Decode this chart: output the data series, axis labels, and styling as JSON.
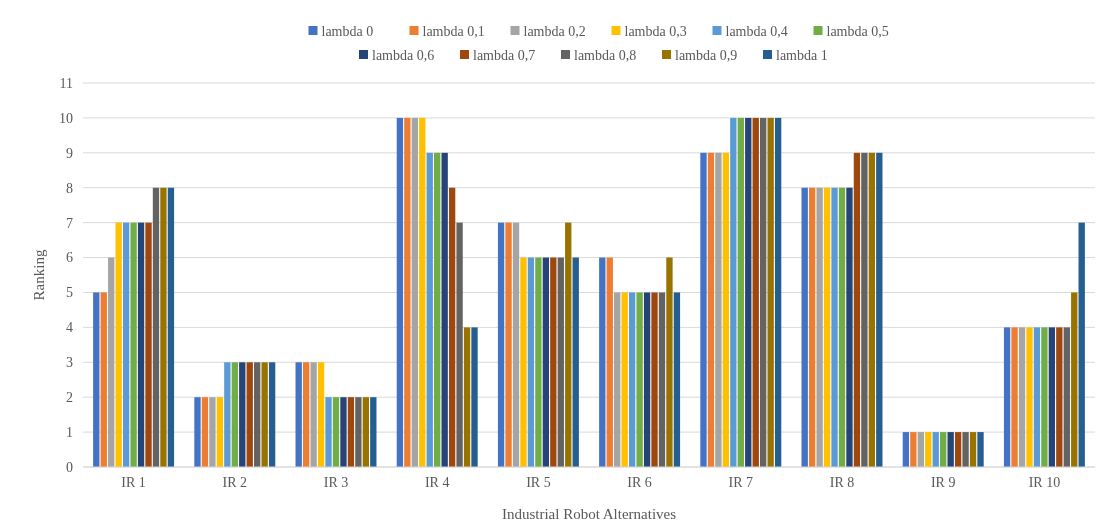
{
  "chart_data": {
    "type": "bar",
    "xlabel": "Industrial Robot Alternatives",
    "ylabel": "Ranking",
    "categories": [
      "IR 1",
      "IR 2",
      "IR 3",
      "IR 4",
      "IR 5",
      "IR 6",
      "IR 7",
      "IR 8",
      "IR 9",
      "IR 10"
    ],
    "series": [
      {
        "name": "lambda 0",
        "color": "#4472c4",
        "values": [
          5,
          2,
          3,
          10,
          7,
          6,
          9,
          8,
          1,
          4
        ]
      },
      {
        "name": "lambda 0,1",
        "color": "#ed7d31",
        "values": [
          5,
          2,
          3,
          10,
          7,
          6,
          9,
          8,
          1,
          4
        ]
      },
      {
        "name": "lambda 0,2",
        "color": "#a5a5a5",
        "values": [
          6,
          2,
          3,
          10,
          7,
          5,
          9,
          8,
          1,
          4
        ]
      },
      {
        "name": "lambda 0,3",
        "color": "#ffc000",
        "values": [
          7,
          2,
          3,
          10,
          6,
          5,
          9,
          8,
          1,
          4
        ]
      },
      {
        "name": "lambda 0,4",
        "color": "#5b9bd5",
        "values": [
          7,
          3,
          2,
          9,
          6,
          5,
          10,
          8,
          1,
          4
        ]
      },
      {
        "name": "lambda 0,5",
        "color": "#70ad47",
        "values": [
          7,
          3,
          2,
          9,
          6,
          5,
          10,
          8,
          1,
          4
        ]
      },
      {
        "name": "lambda 0,6",
        "color": "#264478",
        "values": [
          7,
          3,
          2,
          9,
          6,
          5,
          10,
          8,
          1,
          4
        ]
      },
      {
        "name": "lambda 0,7",
        "color": "#9e480e",
        "values": [
          7,
          3,
          2,
          8,
          6,
          5,
          10,
          9,
          1,
          4
        ]
      },
      {
        "name": "lambda 0,8",
        "color": "#636363",
        "values": [
          8,
          3,
          2,
          7,
          6,
          5,
          10,
          9,
          1,
          4
        ]
      },
      {
        "name": "lambda 0,9",
        "color": "#997300",
        "values": [
          8,
          3,
          2,
          4,
          7,
          6,
          10,
          9,
          1,
          5
        ]
      },
      {
        "name": "lambda 1",
        "color": "#255e91",
        "values": [
          8,
          3,
          2,
          4,
          6,
          5,
          10,
          9,
          1,
          7
        ]
      }
    ],
    "ylim": [
      0,
      11
    ],
    "yticks": [
      0,
      1,
      2,
      3,
      4,
      5,
      6,
      7,
      8,
      9,
      10,
      11
    ],
    "grid": "y",
    "legend": "top"
  }
}
